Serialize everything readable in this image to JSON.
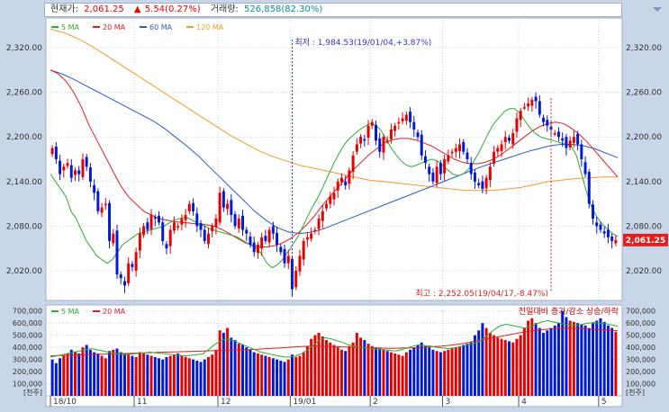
{
  "header": {
    "price_label": "현재가:",
    "price": "2,061.25",
    "change": "5.54(0.27%)",
    "volume_label": "거래량:",
    "volume": "526,858(82.30%)"
  },
  "colors": {
    "up": "#e60000",
    "down": "#0018d8",
    "ma5": "#2eaa2e",
    "ma20": "#e02020",
    "ma60": "#2b5dc8",
    "ma120": "#f29b2c",
    "panel_bg": "#ffffff",
    "grid": "#c8d4e2",
    "annotation": "#3333cc",
    "current_tag": "#e02020"
  },
  "price_legend": [
    {
      "label": "5 MA",
      "color": "#2eaa2e"
    },
    {
      "label": "20 MA",
      "color": "#e02020"
    },
    {
      "label": "60 MA",
      "color": "#2b5dc8"
    },
    {
      "label": "120 MA",
      "color": "#f29b2c"
    }
  ],
  "volume_legend": [
    {
      "label": "5 MA",
      "color": "#2eaa2e"
    },
    {
      "label": "20 MA",
      "color": "#e02020"
    }
  ],
  "volume_right_label": "전일대비 증가/감소 상승/하락",
  "unit_label": "[천주]",
  "current_tag": "2,061.25",
  "annotations": {
    "low": "최저 : 1,984.53(19/01/04,+3.87%)",
    "high": "최고 : 2,252.05(19/04/17,-8.47%)"
  },
  "chart_data": {
    "type": "candlestick",
    "price_axis": {
      "ticks": [
        "2,320.00",
        "2,260.00",
        "2,200.00",
        "2,140.00",
        "2,080.00",
        "2,020.00"
      ],
      "values": [
        2320,
        2260,
        2200,
        2140,
        2080,
        2020
      ],
      "ylim": [
        1980,
        2360
      ]
    },
    "volume_axis": {
      "ticks": [
        "700,000",
        "600,000",
        "500,000",
        "400,000",
        "300,000",
        "200,000",
        "100,000"
      ],
      "values": [
        700000,
        600000,
        500000,
        400000,
        300000,
        200000,
        100000
      ],
      "ylim": [
        0,
        750000
      ]
    },
    "x_ticks": [
      {
        "label": "18/10",
        "index": 0
      },
      {
        "label": "11",
        "index": 22
      },
      {
        "label": "12",
        "index": 44
      },
      {
        "label": "19/01",
        "index": 63
      },
      {
        "label": "2",
        "index": 84
      },
      {
        "label": "3",
        "index": 103
      },
      {
        "label": "4",
        "index": 123
      },
      {
        "label": "5",
        "index": 144
      }
    ],
    "low_point": {
      "index": 63,
      "value": 1984.53,
      "date": "19/01/04"
    },
    "high_point": {
      "index": 131,
      "value": 2252.05,
      "date": "19/04/17"
    },
    "current": 2061.25,
    "close": [
      2185,
      2170,
      2150,
      2160,
      2165,
      2145,
      2155,
      2150,
      2170,
      2160,
      2140,
      2125,
      2100,
      2105,
      2110,
      2060,
      2070,
      2015,
      2010,
      2000,
      2030,
      2025,
      2045,
      2070,
      2080,
      2075,
      2095,
      2090,
      2085,
      2060,
      2050,
      2075,
      2085,
      2080,
      2090,
      2095,
      2110,
      2100,
      2080,
      2075,
      2060,
      2070,
      2080,
      2090,
      2125,
      2105,
      2110,
      2095,
      2080,
      2090,
      2075,
      2070,
      2055,
      2045,
      2055,
      2065,
      2060,
      2075,
      2070,
      2055,
      2045,
      2030,
      2040,
      1995,
      2020,
      2040,
      2060,
      2065,
      2070,
      2075,
      2090,
      2100,
      2110,
      2120,
      2125,
      2140,
      2145,
      2135,
      2155,
      2175,
      2190,
      2200,
      2195,
      2215,
      2220,
      2195,
      2180,
      2200,
      2195,
      2210,
      2215,
      2220,
      2225,
      2230,
      2220,
      2210,
      2200,
      2175,
      2165,
      2150,
      2140,
      2160,
      2150,
      2170,
      2175,
      2180,
      2185,
      2190,
      2180,
      2170,
      2150,
      2140,
      2135,
      2130,
      2145,
      2160,
      2180,
      2185,
      2190,
      2200,
      2195,
      2205,
      2225,
      2235,
      2240,
      2245,
      2250,
      2248,
      2230,
      2220,
      2215,
      2210,
      2205,
      2200,
      2195,
      2185,
      2195,
      2200,
      2190,
      2170,
      2150,
      2110,
      2090,
      2080,
      2075,
      2070,
      2065,
      2060,
      2061.25
    ],
    "series_ma": {
      "ma5": [
        2150,
        2140,
        2130,
        2120,
        2100,
        2090,
        2075,
        2060,
        2050,
        2040,
        2035,
        2030,
        2035,
        2045,
        2055,
        2060,
        2065,
        2070,
        2072,
        2074,
        2076,
        2078,
        2080,
        2084,
        2088,
        2090,
        2092,
        2090,
        2086,
        2082,
        2080,
        2076,
        2074,
        2072,
        2070,
        2068,
        2066,
        2062,
        2058,
        2054,
        2050,
        2042,
        2030,
        2024,
        2028,
        2035,
        2045,
        2055,
        2066,
        2080,
        2095,
        2108,
        2120,
        2135,
        2150,
        2165,
        2178,
        2190,
        2198,
        2204,
        2210,
        2214,
        2218,
        2216,
        2210,
        2198,
        2186,
        2176,
        2168,
        2162,
        2160,
        2162,
        2165,
        2168,
        2170,
        2168,
        2162,
        2156,
        2150,
        2148,
        2150,
        2156,
        2166,
        2178,
        2192,
        2206,
        2218,
        2226,
        2234,
        2238,
        2238,
        2232,
        2222,
        2212,
        2205,
        2200,
        2198,
        2196,
        2194,
        2192,
        2190,
        2188,
        2175,
        2150,
        2125,
        2105,
        2092,
        2083,
        2076,
        2070,
        2066
      ],
      "ma20": [
        2290,
        2285,
        2275,
        2260,
        2240,
        2215,
        2195,
        2175,
        2155,
        2135,
        2120,
        2110,
        2100,
        2095,
        2090,
        2088,
        2086,
        2085,
        2084,
        2083,
        2082,
        2080,
        2076,
        2070,
        2064,
        2058,
        2054,
        2052,
        2052,
        2054,
        2058,
        2064,
        2072,
        2082,
        2094,
        2108,
        2120,
        2132,
        2144,
        2156,
        2166,
        2176,
        2184,
        2192,
        2196,
        2198,
        2198,
        2196,
        2192,
        2188,
        2182,
        2176,
        2170,
        2166,
        2164,
        2164,
        2166,
        2170,
        2176,
        2184,
        2192,
        2200,
        2208,
        2214,
        2218,
        2220,
        2218,
        2212,
        2204,
        2194,
        2182,
        2170,
        2158,
        2146
      ],
      "ma60": [
        2290,
        2285,
        2278,
        2270,
        2262,
        2254,
        2246,
        2238,
        2230,
        2222,
        2212,
        2200,
        2188,
        2175,
        2160,
        2145,
        2130,
        2115,
        2100,
        2088,
        2078,
        2072,
        2070,
        2072,
        2076,
        2082,
        2088,
        2094,
        2100,
        2106,
        2112,
        2118,
        2124,
        2130,
        2136,
        2142,
        2148,
        2154,
        2160,
        2165,
        2170,
        2175,
        2180,
        2184,
        2188,
        2190,
        2190,
        2188,
        2184,
        2178,
        2172
      ],
      "ma120": [
        2345,
        2340,
        2332,
        2322,
        2310,
        2298,
        2286,
        2274,
        2262,
        2250,
        2238,
        2226,
        2214,
        2202,
        2192,
        2182,
        2174,
        2168,
        2162,
        2158,
        2154,
        2150,
        2146,
        2142,
        2140,
        2138,
        2136,
        2134,
        2132,
        2130,
        2128,
        2128,
        2128,
        2130,
        2132,
        2136,
        2140,
        2142,
        2144,
        2145,
        2146,
        2146
      ]
    },
    "volume": [
      300,
      270,
      310,
      330,
      350,
      380,
      360,
      350,
      400,
      420,
      380,
      360,
      350,
      330,
      310,
      370,
      380,
      390,
      360,
      350,
      340,
      330,
      320,
      360,
      350,
      340,
      330,
      320,
      310,
      300,
      320,
      330,
      340,
      350,
      330,
      320,
      310,
      300,
      290,
      280,
      300,
      320,
      340,
      380,
      540,
      520,
      560,
      480,
      460,
      430,
      420,
      400,
      380,
      360,
      350,
      340,
      330,
      320,
      310,
      300,
      290,
      280,
      300,
      340,
      320,
      330,
      360,
      410,
      470,
      500,
      520,
      490,
      460,
      440,
      420,
      400,
      380,
      370,
      410,
      440,
      520,
      480,
      460,
      430,
      410,
      400,
      390,
      380,
      370,
      360,
      350,
      340,
      330,
      360,
      380,
      400,
      420,
      440,
      410,
      400,
      380,
      370,
      360,
      370,
      380,
      390,
      400,
      410,
      420,
      430,
      440,
      500,
      540,
      600,
      560,
      520,
      500,
      480,
      470,
      460,
      450,
      440,
      470,
      500,
      560,
      620,
      640,
      600,
      560,
      520,
      540,
      560,
      580,
      600,
      700,
      650,
      620,
      610,
      600,
      590,
      580,
      560,
      600,
      620,
      640,
      610,
      580,
      560,
      526.858
    ],
    "volume_ma": {
      "ma5": [
        320,
        330,
        340,
        350,
        360,
        370,
        380,
        390,
        380,
        370,
        360,
        350,
        345,
        340,
        345,
        350,
        355,
        360,
        355,
        350,
        345,
        340,
        335,
        330,
        335,
        340,
        345,
        380,
        420,
        450,
        470,
        460,
        440,
        420,
        400,
        380,
        360,
        350,
        340,
        330,
        320,
        320,
        330,
        350,
        380,
        420,
        460,
        480,
        470,
        455,
        440,
        420,
        410,
        400,
        395,
        390,
        385,
        380,
        375,
        370,
        380,
        395,
        410,
        420,
        415,
        410,
        400,
        395,
        390,
        395,
        405,
        415,
        425,
        440,
        470,
        510,
        550,
        580,
        590,
        580,
        570,
        560,
        570,
        590,
        610,
        620,
        610,
        600,
        590,
        585,
        580,
        590,
        600,
        605,
        600,
        595,
        585,
        575
      ],
      "ma20": [
        330,
        332,
        334,
        336,
        338,
        340,
        342,
        344,
        346,
        348,
        350,
        352,
        354,
        356,
        358,
        360,
        362,
        364,
        366,
        368,
        370,
        372,
        374,
        376,
        378,
        380,
        382,
        384,
        388,
        392,
        396,
        400,
        404,
        408,
        410,
        410,
        408,
        406,
        404,
        402,
        400,
        398,
        396,
        394,
        392,
        392,
        394,
        396,
        398,
        402,
        406,
        410,
        416,
        424,
        434,
        446,
        458,
        470,
        482,
        494,
        506,
        518,
        528,
        538,
        546,
        552,
        556,
        558,
        558,
        556,
        552,
        548,
        544,
        540,
        536
      ]
    }
  }
}
